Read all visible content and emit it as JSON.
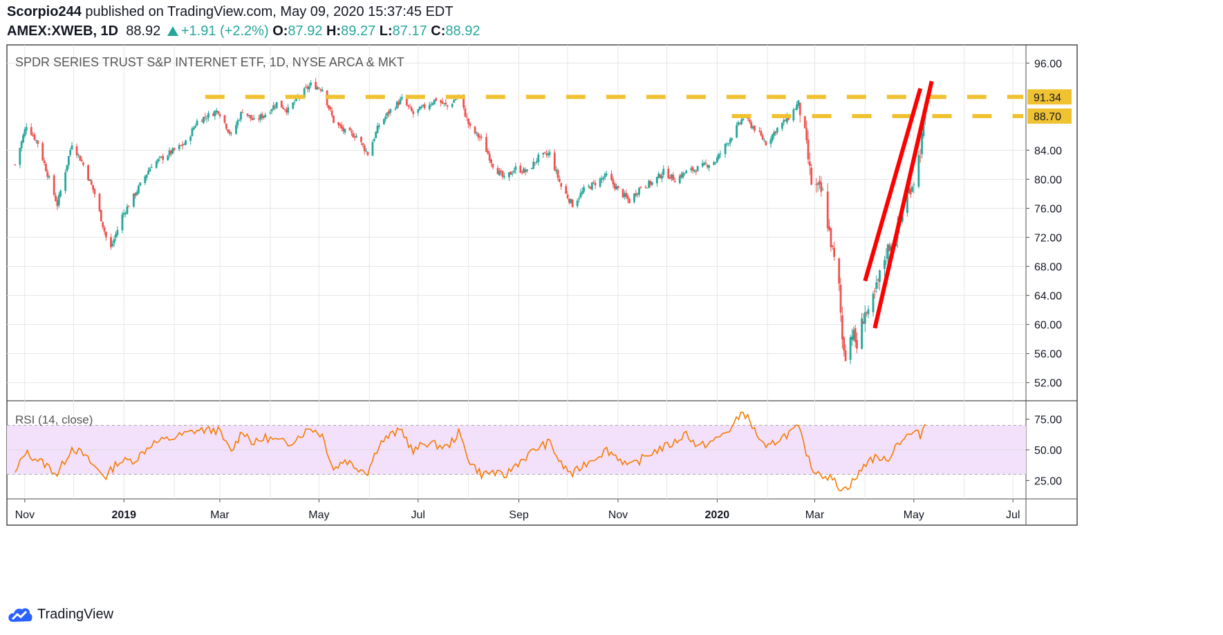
{
  "header": {
    "author": "Scorpio244",
    "published_text": "published on TradingView.com, May 09, 2020 15:37:45 EDT",
    "symbol": "AMEX:XWEB, 1D",
    "last": "88.92",
    "change": "+1.91 (+2.2%)",
    "o_label": "O:",
    "o_value": "87.92",
    "h_label": "H:",
    "h_value": "89.27",
    "l_label": "L:",
    "l_value": "87.17",
    "c_label": "C:",
    "c_value": "88.92"
  },
  "footer": {
    "brand": "TradingView",
    "logo_icon": "tradingview-cloud-icon"
  },
  "colors": {
    "up": "#26a69a",
    "down": "#ef5350",
    "level_line": "#f0c232",
    "channel": "#ff0000",
    "rsi_line": "#f57c00",
    "rsi_band": "#f3e0fb",
    "grid": "#e6e6e6"
  },
  "chart_data": {
    "type": "candlestick",
    "title": "SPDR SERIES TRUST S&P INTERNET ETF, 1D, NYSE ARCA & MKT",
    "price_axis": {
      "ticks": [
        "96.00",
        "84.00",
        "80.00",
        "76.00",
        "72.00",
        "68.00",
        "64.00",
        "60.00",
        "56.00",
        "52.00"
      ],
      "range": [
        49.5,
        98.5
      ]
    },
    "time_axis": {
      "ticks": [
        "Nov",
        "2019",
        "Mar",
        "May",
        "Jul",
        "Sep",
        "Nov",
        "2020",
        "Mar",
        "May",
        "Jul"
      ]
    },
    "price_labels": [
      "91.34",
      "88.70"
    ],
    "horizontal_levels": [
      91.34,
      88.7
    ],
    "channel_lines": [
      {
        "from": [
          "2020-04-01",
          66.0
        ],
        "to": [
          "2020-05-05",
          92.5
        ]
      },
      {
        "from": [
          "2020-04-07",
          59.5
        ],
        "to": [
          "2020-05-12",
          93.5
        ]
      }
    ],
    "price_path": [
      [
        "2018-10-26",
        82.0
      ],
      [
        "2018-11-02",
        87.5
      ],
      [
        "2018-11-09",
        85.0
      ],
      [
        "2018-11-16",
        80.0
      ],
      [
        "2018-11-21",
        76.5
      ],
      [
        "2018-11-30",
        85.0
      ],
      [
        "2018-12-07",
        82.0
      ],
      [
        "2018-12-14",
        78.0
      ],
      [
        "2018-12-21",
        72.0
      ],
      [
        "2018-12-24",
        70.5
      ],
      [
        "2018-12-31",
        75.0
      ],
      [
        "2019-01-08",
        78.0
      ],
      [
        "2019-01-18",
        82.0
      ],
      [
        "2019-02-01",
        84.0
      ],
      [
        "2019-02-08",
        85.0
      ],
      [
        "2019-02-15",
        88.0
      ],
      [
        "2019-02-28",
        89.5
      ],
      [
        "2019-03-08",
        86.0
      ],
      [
        "2019-03-15",
        89.5
      ],
      [
        "2019-03-22",
        88.0
      ],
      [
        "2019-03-29",
        89.0
      ],
      [
        "2019-04-05",
        90.5
      ],
      [
        "2019-04-12",
        89.5
      ],
      [
        "2019-04-19",
        91.5
      ],
      [
        "2019-04-26",
        93.0
      ],
      [
        "2019-05-03",
        92.5
      ],
      [
        "2019-05-10",
        88.0
      ],
      [
        "2019-05-17",
        86.5
      ],
      [
        "2019-05-24",
        86.0
      ],
      [
        "2019-05-31",
        83.5
      ],
      [
        "2019-06-07",
        87.5
      ],
      [
        "2019-06-14",
        89.5
      ],
      [
        "2019-06-21",
        91.0
      ],
      [
        "2019-06-28",
        89.0
      ],
      [
        "2019-07-05",
        90.0
      ],
      [
        "2019-07-12",
        91.0
      ],
      [
        "2019-07-19",
        90.0
      ],
      [
        "2019-07-26",
        91.5
      ],
      [
        "2019-08-02",
        87.0
      ],
      [
        "2019-08-09",
        85.5
      ],
      [
        "2019-08-16",
        82.0
      ],
      [
        "2019-08-23",
        80.0
      ],
      [
        "2019-08-30",
        81.5
      ],
      [
        "2019-09-06",
        81.0
      ],
      [
        "2019-09-13",
        83.0
      ],
      [
        "2019-09-20",
        83.5
      ],
      [
        "2019-09-27",
        79.0
      ],
      [
        "2019-10-04",
        76.5
      ],
      [
        "2019-10-11",
        78.5
      ],
      [
        "2019-10-18",
        79.5
      ],
      [
        "2019-10-25",
        80.5
      ],
      [
        "2019-11-01",
        78.5
      ],
      [
        "2019-11-08",
        77.0
      ],
      [
        "2019-11-15",
        79.0
      ],
      [
        "2019-11-22",
        79.5
      ],
      [
        "2019-11-29",
        81.0
      ],
      [
        "2019-12-06",
        80.0
      ],
      [
        "2019-12-13",
        81.0
      ],
      [
        "2019-12-20",
        81.5
      ],
      [
        "2019-12-31",
        82.5
      ],
      [
        "2020-01-10",
        86.0
      ],
      [
        "2020-01-17",
        88.5
      ],
      [
        "2020-01-24",
        87.0
      ],
      [
        "2020-01-31",
        85.0
      ],
      [
        "2020-02-07",
        87.0
      ],
      [
        "2020-02-14",
        88.5
      ],
      [
        "2020-02-20",
        90.5
      ],
      [
        "2020-02-24",
        86.0
      ],
      [
        "2020-02-28",
        79.5
      ],
      [
        "2020-03-06",
        78.0
      ],
      [
        "2020-03-12",
        70.0
      ],
      [
        "2020-03-16",
        65.0
      ],
      [
        "2020-03-18",
        58.0
      ],
      [
        "2020-03-20",
        56.0
      ],
      [
        "2020-03-24",
        59.0
      ],
      [
        "2020-03-27",
        57.0
      ],
      [
        "2020-04-01",
        62.0
      ],
      [
        "2020-04-03",
        61.0
      ],
      [
        "2020-04-08",
        65.0
      ],
      [
        "2020-04-14",
        70.0
      ],
      [
        "2020-04-21",
        73.0
      ],
      [
        "2020-04-28",
        78.5
      ],
      [
        "2020-05-01",
        80.0
      ],
      [
        "2020-05-05",
        84.0
      ],
      [
        "2020-05-08",
        88.9
      ]
    ],
    "rsi": {
      "label": "RSI (14, close)",
      "ticks": [
        "75.00",
        "50.00",
        "25.00"
      ],
      "band": [
        30,
        70
      ],
      "range": [
        10,
        90
      ],
      "path": [
        [
          "2018-10-26",
          30
        ],
        [
          "2018-11-01",
          48
        ],
        [
          "2018-11-09",
          42
        ],
        [
          "2018-11-16",
          36
        ],
        [
          "2018-11-21",
          30
        ],
        [
          "2018-11-30",
          52
        ],
        [
          "2018-12-07",
          46
        ],
        [
          "2018-12-14",
          36
        ],
        [
          "2018-12-21",
          28
        ],
        [
          "2018-12-28",
          40
        ],
        [
          "2019-01-08",
          42
        ],
        [
          "2019-01-18",
          55
        ],
        [
          "2019-02-01",
          60
        ],
        [
          "2019-02-15",
          66
        ],
        [
          "2019-02-28",
          66
        ],
        [
          "2019-03-08",
          48
        ],
        [
          "2019-03-15",
          66
        ],
        [
          "2019-03-22",
          55
        ],
        [
          "2019-03-29",
          60
        ],
        [
          "2019-04-12",
          55
        ],
        [
          "2019-04-26",
          68
        ],
        [
          "2019-05-03",
          62
        ],
        [
          "2019-05-10",
          34
        ],
        [
          "2019-05-17",
          42
        ],
        [
          "2019-05-24",
          36
        ],
        [
          "2019-05-31",
          32
        ],
        [
          "2019-06-07",
          55
        ],
        [
          "2019-06-14",
          62
        ],
        [
          "2019-06-21",
          66
        ],
        [
          "2019-06-28",
          48
        ],
        [
          "2019-07-05",
          56
        ],
        [
          "2019-07-19",
          52
        ],
        [
          "2019-07-26",
          64
        ],
        [
          "2019-08-02",
          40
        ],
        [
          "2019-08-09",
          30
        ],
        [
          "2019-08-16",
          32
        ],
        [
          "2019-08-23",
          28
        ],
        [
          "2019-08-30",
          38
        ],
        [
          "2019-09-13",
          52
        ],
        [
          "2019-09-20",
          56
        ],
        [
          "2019-09-27",
          38
        ],
        [
          "2019-10-04",
          30
        ],
        [
          "2019-10-11",
          38
        ],
        [
          "2019-10-25",
          50
        ],
        [
          "2019-11-01",
          44
        ],
        [
          "2019-11-08",
          36
        ],
        [
          "2019-11-22",
          48
        ],
        [
          "2019-12-06",
          56
        ],
        [
          "2019-12-13",
          64
        ],
        [
          "2019-12-20",
          52
        ],
        [
          "2019-12-31",
          58
        ],
        [
          "2020-01-10",
          68
        ],
        [
          "2020-01-17",
          82
        ],
        [
          "2020-01-24",
          66
        ],
        [
          "2020-01-31",
          50
        ],
        [
          "2020-02-07",
          58
        ],
        [
          "2020-02-20",
          68
        ],
        [
          "2020-02-28",
          35
        ],
        [
          "2020-03-06",
          30
        ],
        [
          "2020-03-12",
          26
        ],
        [
          "2020-03-16",
          20
        ],
        [
          "2020-03-20",
          18
        ],
        [
          "2020-03-27",
          28
        ],
        [
          "2020-04-03",
          42
        ],
        [
          "2020-04-10",
          44
        ],
        [
          "2020-04-14",
          40
        ],
        [
          "2020-04-21",
          56
        ],
        [
          "2020-04-28",
          62
        ],
        [
          "2020-05-01",
          64
        ],
        [
          "2020-05-05",
          62
        ],
        [
          "2020-05-08",
          71
        ]
      ]
    }
  }
}
